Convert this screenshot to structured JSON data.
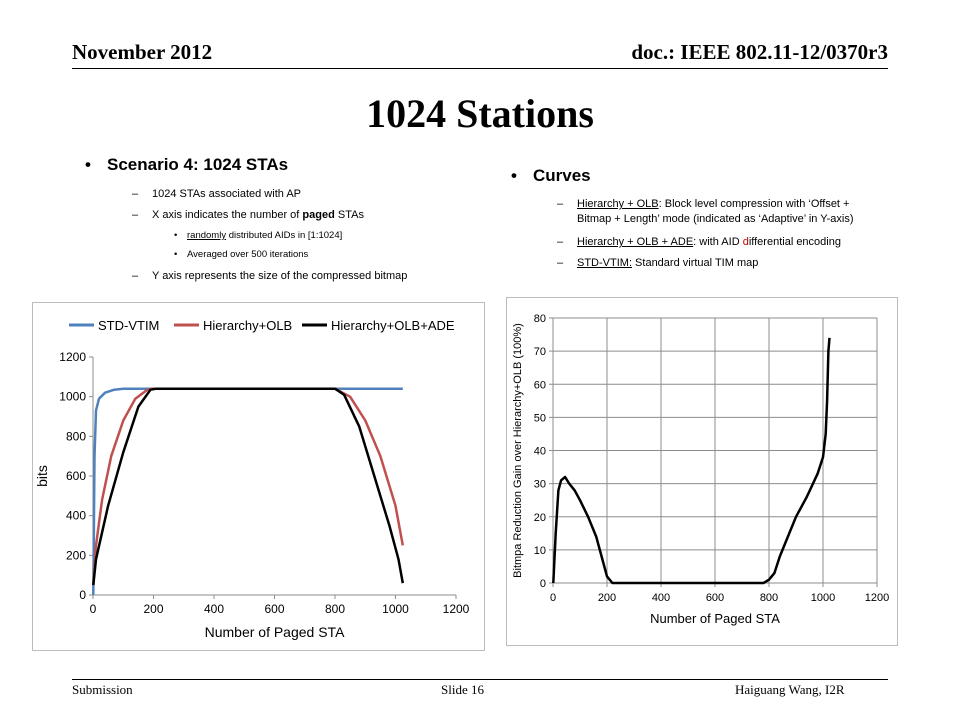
{
  "header": {
    "date": "November 2012",
    "doc": "doc.: IEEE 802.11-12/0370r3"
  },
  "title": "1024 Stations",
  "left_bullets": {
    "heading": "Scenario 4: 1024 STAs",
    "items": [
      "1024 STAs associated with AP",
      "X axis indicates the number of paged STAs",
      "Y axis represents the size of the compressed bitmap"
    ],
    "item2_parts": {
      "pre": "X axis indicates the number of ",
      "bold": "paged",
      "post": " STAs"
    },
    "sub": [
      {
        "underlined": "randomly",
        "rest": " distributed AIDs in [1:1024]"
      },
      {
        "text": "Averaged over 500 iterations"
      }
    ]
  },
  "right_bullets": {
    "heading": "Curves",
    "items": [
      {
        "u": "Hierarchy + OLB",
        "rest": ": Block level compression with ‘Offset +",
        "rest2": "Bitmap + Length’ mode (indicated as ‘Adaptive’ in Y-axis)"
      },
      {
        "u": "Hierarchy + OLB + ADE",
        "rest_a": ": with AID ",
        "rest_red": "d",
        "rest_b": "ifferential encoding"
      },
      {
        "u": "STD-VTIM:",
        "rest": " Standard  virtual TIM map"
      }
    ]
  },
  "footer": {
    "left": "Submission",
    "mid": "Slide 16",
    "right": "Haiguang Wang, I2R"
  },
  "chart_data": [
    {
      "type": "line",
      "xlabel": "Number of Paged STA",
      "ylabel": "bits",
      "xlim": [
        0,
        1200
      ],
      "ylim": [
        0,
        1200
      ],
      "xticks": [
        0,
        200,
        400,
        600,
        800,
        1000,
        1200
      ],
      "yticks": [
        0,
        200,
        400,
        600,
        800,
        1000,
        1200
      ],
      "grid": false,
      "legend": "top",
      "series": [
        {
          "name": "STD-VTIM",
          "color": "#4f81bd",
          "x": [
            1,
            5,
            10,
            20,
            40,
            70,
            100,
            150,
            200,
            400,
            600,
            800,
            1024
          ],
          "y": [
            0,
            700,
            930,
            990,
            1020,
            1035,
            1040,
            1040,
            1040,
            1040,
            1040,
            1040,
            1040
          ]
        },
        {
          "name": "Hierarchy+OLB",
          "color": "#c0504d",
          "x": [
            1,
            10,
            30,
            60,
            100,
            140,
            180,
            200,
            400,
            600,
            800,
            850,
            900,
            950,
            1000,
            1024
          ],
          "y": [
            50,
            250,
            480,
            700,
            880,
            990,
            1035,
            1040,
            1040,
            1040,
            1040,
            1000,
            880,
            700,
            450,
            250
          ]
        },
        {
          "name": "Hierarchy+OLB+ADE",
          "color": "#000000",
          "x": [
            1,
            10,
            50,
            100,
            150,
            190,
            210,
            400,
            600,
            800,
            830,
            880,
            930,
            980,
            1010,
            1024
          ],
          "y": [
            50,
            180,
            450,
            720,
            950,
            1035,
            1040,
            1040,
            1040,
            1040,
            1010,
            850,
            600,
            350,
            180,
            60
          ]
        }
      ]
    },
    {
      "type": "line",
      "xlabel": "Number of Paged STA",
      "ylabel": "Bitmpa Reduction Gain over Hierarchy+OLB (100%)",
      "xlim": [
        0,
        1200
      ],
      "ylim": [
        0,
        80
      ],
      "xticks": [
        0,
        200,
        400,
        600,
        800,
        1000,
        1200
      ],
      "yticks": [
        0,
        10,
        20,
        30,
        40,
        50,
        60,
        70,
        80
      ],
      "grid": true,
      "series": [
        {
          "color": "#000000",
          "x": [
            1,
            10,
            20,
            30,
            45,
            60,
            80,
            100,
            130,
            160,
            180,
            200,
            220,
            400,
            600,
            780,
            800,
            820,
            840,
            870,
            900,
            940,
            980,
            1000,
            1010,
            1015,
            1020,
            1024
          ],
          "y": [
            0,
            15,
            28,
            31,
            32,
            30,
            28,
            25,
            20,
            14,
            8,
            2,
            0,
            0,
            0,
            0,
            1,
            3,
            8,
            14,
            20,
            26,
            33,
            38,
            45,
            55,
            70,
            74
          ]
        }
      ]
    }
  ]
}
